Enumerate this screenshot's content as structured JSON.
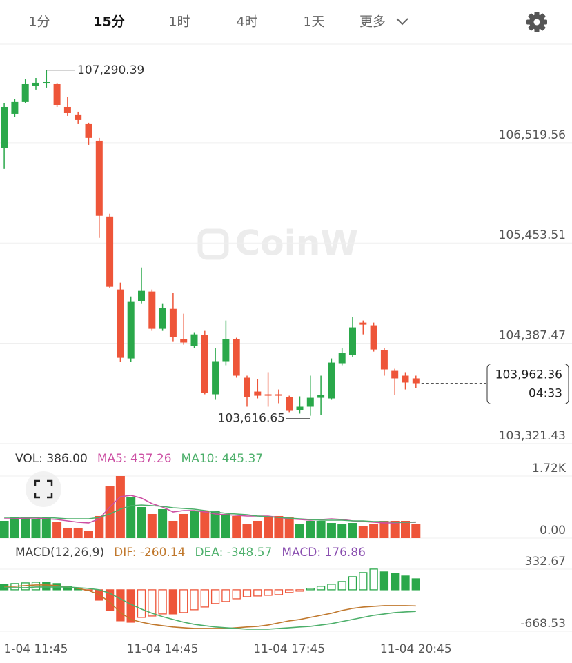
{
  "tabs": [
    "1分",
    "15分",
    "1时",
    "4时",
    "1天",
    "更多"
  ],
  "active_tab": 1,
  "watermark": "CoinW",
  "chart_data": [
    {
      "type": "candlestick",
      "categories": [
        null,
        null,
        null,
        "1-04 11:45",
        null,
        null,
        null,
        null,
        null,
        null,
        null,
        null,
        null,
        null,
        null,
        "11-04 14:45",
        null,
        null,
        null,
        null,
        null,
        null,
        null,
        null,
        null,
        null,
        null,
        "11-04 17:45",
        null,
        null,
        null,
        null,
        null,
        null,
        null,
        null,
        null,
        null,
        null,
        "11-04 20:45"
      ],
      "open": [
        106461,
        106827,
        106952,
        107127,
        107149,
        107142,
        106900,
        106820,
        106717,
        106541,
        105735,
        104959,
        104226,
        104834,
        104937,
        104541,
        104753,
        104431,
        104358,
        104475,
        103845,
        104197,
        104431,
        104021,
        103874,
        103845,
        103845,
        103816,
        103677,
        103713,
        103808,
        103801,
        104175,
        104262,
        104607,
        104578,
        104314,
        104094,
        104043,
        104014
      ],
      "high": [
        106937,
        106988,
        107193,
        107208,
        107290.39,
        107157,
        107010,
        106849,
        106732,
        106571,
        105765,
        105032,
        104885,
        105193,
        104959,
        104812,
        104922,
        104702,
        104505,
        104519,
        104336,
        104629,
        104446,
        104043,
        104006,
        104080,
        103896,
        103830,
        103823,
        104043,
        104043,
        104226,
        104336,
        104666,
        104629,
        104607,
        104336,
        104116,
        104080,
        104043
      ],
      "low": [
        106241,
        106790,
        106937,
        107084,
        107106,
        106900,
        106805,
        106717,
        106497,
        105508,
        104973,
        104189,
        104189,
        104812,
        104519,
        104519,
        104409,
        104372,
        104336,
        103845,
        103786,
        104153,
        104021,
        103713,
        103801,
        103713,
        103750,
        103655,
        103640,
        103616.65,
        103625,
        103786,
        104153,
        104241,
        104482,
        104299,
        104043,
        103838,
        103896,
        103911
      ],
      "close": [
        106900,
        106952,
        107142,
        107157,
        107164,
        106922,
        106834,
        106761,
        106571,
        105743,
        104988,
        104233,
        104827,
        104944,
        104541,
        104761,
        104453,
        104395,
        104482,
        103860,
        104197,
        104431,
        104043,
        103816,
        103830,
        103830,
        103830,
        103669,
        103713,
        103808,
        103838,
        104182,
        104285,
        104556,
        104585,
        104321,
        104109,
        104014,
        103970,
        103962.36
      ],
      "up_color": "#2aa84a",
      "down_color": "#ee5539",
      "ylim": [
        103306,
        107560
      ],
      "yticks": [
        {
          "value": 106519.56,
          "label": "106,519.56"
        },
        {
          "value": 105453.51,
          "label": "105,453.51"
        },
        {
          "value": 104387.47,
          "label": "104,387.47"
        },
        {
          "value": 103321.43,
          "label": "103,321.43"
        }
      ],
      "grid": true,
      "max_label": {
        "value": 107290.39,
        "label": "107,290.39"
      },
      "min_label": {
        "value": 103616.65,
        "label": "103,616.65"
      },
      "last_price": {
        "value": 103962.36,
        "label": "103,962.36"
      },
      "countdown": "04:33"
    },
    {
      "type": "bar",
      "ylim": [
        0,
        1720
      ],
      "yticks": [
        {
          "value": 1720,
          "label": "1.72K"
        },
        {
          "value": 0,
          "label": "0.00"
        }
      ],
      "series": [
        {
          "name": "VOL: 386.00",
          "type": "bar",
          "color": "#333333",
          "values": [
            478,
            573,
            573,
            535,
            573,
            440,
            287,
            287,
            191,
            612,
            1433,
            1720,
            1147,
            860,
            669,
            803,
            478,
            669,
            765,
            765,
            765,
            669,
            612,
            382,
            478,
            612,
            612,
            573,
            382,
            478,
            478,
            420,
            382,
            420,
            344,
            382,
            478,
            478,
            478,
            386
          ]
        },
        {
          "name": "MA5: 437.26",
          "type": "line",
          "color": "#cc4fa3",
          "values": [
            535,
            535,
            554,
            554,
            535,
            516,
            478,
            440,
            420,
            535,
            860,
            1146,
            1184,
            1108,
            955,
            860,
            726,
            764,
            764,
            726,
            669,
            649,
            630,
            611,
            611,
            611,
            573,
            535,
            516,
            497,
            516,
            535,
            516,
            478,
            458,
            440,
            420,
            420,
            440,
            437.26
          ]
        },
        {
          "name": "MA10: 445.37",
          "type": "line",
          "color": "#4caf6a",
          "values": [
            573,
            573,
            573,
            573,
            573,
            554,
            535,
            535,
            535,
            573,
            669,
            802,
            898,
            917,
            898,
            879,
            840,
            821,
            802,
            764,
            726,
            688,
            669,
            649,
            611,
            592,
            573,
            554,
            535,
            516,
            497,
            497,
            497,
            478,
            478,
            458,
            458,
            440,
            440,
            445.37
          ]
        }
      ]
    },
    {
      "type": "bar",
      "title": "MACD(12,26,9)",
      "ylim": [
        -668.53,
        332.67
      ],
      "yticks": [
        332.67,
        -668.53
      ],
      "color_positive": "#2aa84a",
      "color_negative": "#ee5539",
      "hollow_when_rising": true,
      "series": [
        {
          "name": "DIF: -260.14",
          "type": "line",
          "color": "#c0782d",
          "values": [
            56,
            56,
            67,
            78,
            78,
            67,
            44,
            22,
            -11,
            -78,
            -200,
            -367,
            -478,
            -523,
            -556,
            -578,
            -600,
            -612,
            -623,
            -623,
            -623,
            -623,
            -612,
            -600,
            -589,
            -567,
            -534,
            -500,
            -478,
            -445,
            -411,
            -378,
            -334,
            -300,
            -278,
            -267,
            -256,
            -256,
            -256,
            -260.14
          ]
        },
        {
          "name": "DEA: -348.57",
          "type": "line",
          "color": "#4caf6a",
          "values": [
            33,
            33,
            33,
            44,
            44,
            44,
            44,
            33,
            22,
            0,
            -56,
            -145,
            -234,
            -311,
            -378,
            -434,
            -478,
            -523,
            -556,
            -578,
            -600,
            -612,
            -623,
            -634,
            -634,
            -634,
            -623,
            -612,
            -600,
            -589,
            -567,
            -545,
            -512,
            -478,
            -445,
            -411,
            -389,
            -367,
            -356,
            -348.57
          ]
        },
        {
          "name": "MACD: 176.86",
          "type": "histogram",
          "color": "#8a4fb0",
          "values": [
            89,
            100,
            111,
            122,
            122,
            100,
            56,
            22,
            -11,
            -167,
            -334,
            -500,
            -523,
            -445,
            -423,
            -389,
            -389,
            -367,
            -322,
            -278,
            -222,
            -189,
            -145,
            -111,
            -100,
            -89,
            -78,
            -44,
            -22,
            22,
            56,
            89,
            133,
            211,
            278,
            334,
            289,
            267,
            222,
            176.86
          ]
        }
      ]
    }
  ]
}
